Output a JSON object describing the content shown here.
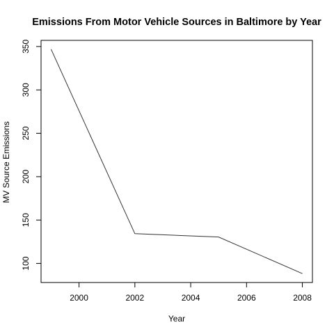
{
  "chart_data": {
    "type": "line",
    "title": "Emissions From Motor Vehicle Sources in Baltimore by Year",
    "xlabel": "Year",
    "ylabel": "MV Source Emissions",
    "x": [
      1999,
      2002,
      2005,
      2008
    ],
    "series": [
      {
        "values": [
          346.8,
          134.3,
          130.4,
          88.3
        ]
      }
    ],
    "xlim": [
      1998.64,
      2008.36
    ],
    "ylim": [
      78.0,
      357.1
    ],
    "xticks": [
      2000,
      2002,
      2004,
      2006,
      2008
    ],
    "yticks": [
      100,
      150,
      200,
      250,
      300,
      350
    ],
    "xtick_labels": [
      "2000",
      "2002",
      "2004",
      "2006",
      "2008"
    ],
    "ytick_labels": [
      "100",
      "150",
      "200",
      "250",
      "300",
      "350"
    ],
    "grid": false,
    "legend": "none",
    "line_color": "#333333"
  }
}
